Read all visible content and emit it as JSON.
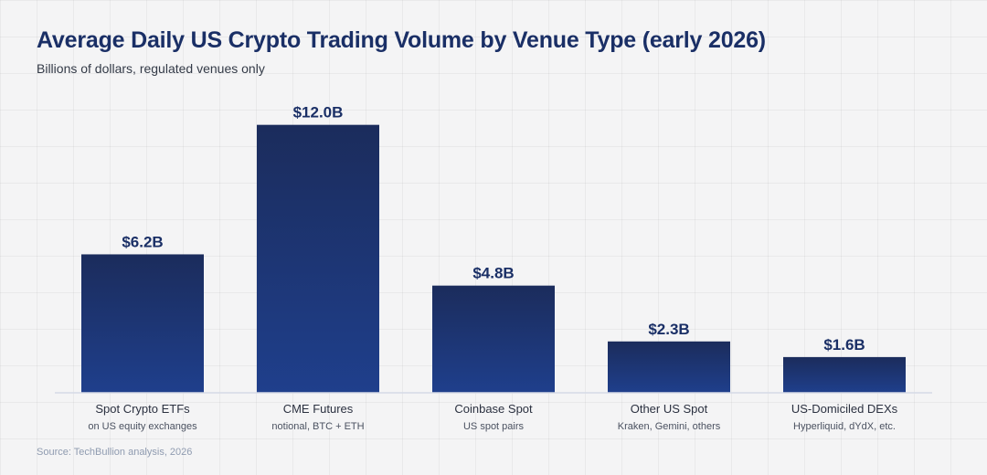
{
  "chart_data": {
    "type": "bar",
    "title": "Average Daily US Crypto Trading Volume by Venue Type (early 2026)",
    "subtitle": "Billions of dollars, regulated venues only",
    "categories": [
      "Spot Crypto ETFs",
      "CME Futures",
      "Coinbase Spot",
      "Other US Spot",
      "US-Domiciled DEXs"
    ],
    "category_notes": [
      "on US equity exchanges",
      "notional, BTC + ETH",
      "US spot pairs",
      "Kraken, Gemini, others",
      "Hyperliquid, dYdX, etc."
    ],
    "values": [
      6.2,
      12.0,
      4.8,
      2.3,
      1.6
    ],
    "value_labels": [
      "$6.2B",
      "$12.0B",
      "$4.8B",
      "$2.3B",
      "$1.6B"
    ],
    "ylim": [
      0,
      13.5
    ],
    "grid": true,
    "colors": {
      "bar_top": "#1b2c5c",
      "bar_bottom": "#1f3f8c",
      "axis": "#d5dae6"
    }
  },
  "source": "Source: TechBullion analysis, 2026"
}
